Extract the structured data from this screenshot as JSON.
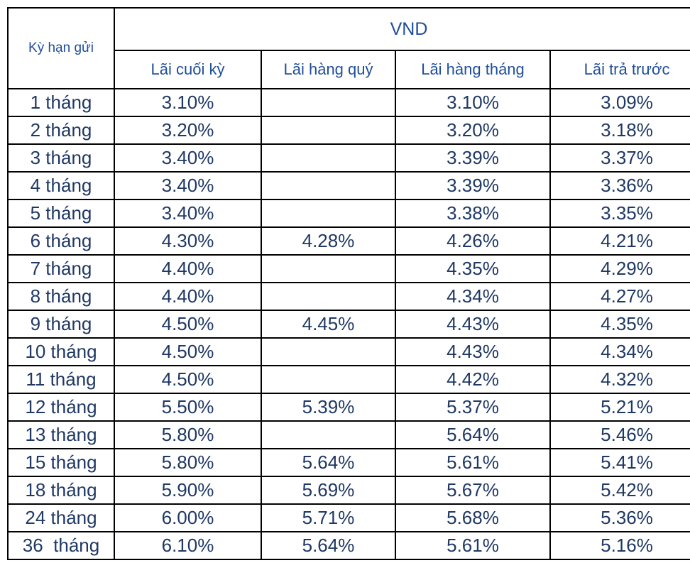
{
  "table": {
    "header": {
      "term": "Kỳ hạn gửi",
      "currency": "VND",
      "columns": [
        "Lãi cuối kỳ",
        "Lãi hàng quý",
        "Lãi hàng tháng",
        "Lãi trả trước"
      ]
    },
    "rows": [
      [
        "1 tháng",
        "3.10%",
        null,
        "3.10%",
        "3.09%"
      ],
      [
        "2 tháng",
        "3.20%",
        null,
        "3.20%",
        "3.18%"
      ],
      [
        "3 tháng",
        "3.40%",
        null,
        "3.39%",
        "3.37%"
      ],
      [
        "4 tháng",
        "3.40%",
        null,
        "3.39%",
        "3.36%"
      ],
      [
        "5 tháng",
        "3.40%",
        null,
        "3.38%",
        "3.35%"
      ],
      [
        "6 tháng",
        "4.30%",
        "4.28%",
        "4.26%",
        "4.21%"
      ],
      [
        "7 tháng",
        "4.40%",
        null,
        "4.35%",
        "4.29%"
      ],
      [
        "8 tháng",
        "4.40%",
        null,
        "4.34%",
        "4.27%"
      ],
      [
        "9 tháng",
        "4.50%",
        "4.45%",
        "4.43%",
        "4.35%"
      ],
      [
        "10 tháng",
        "4.50%",
        null,
        "4.43%",
        "4.34%"
      ],
      [
        "11 tháng",
        "4.50%",
        null,
        "4.42%",
        "4.32%"
      ],
      [
        "12 tháng",
        "5.50%",
        "5.39%",
        "5.37%",
        "5.21%"
      ],
      [
        "13 tháng",
        "5.80%",
        null,
        "5.64%",
        "5.46%"
      ],
      [
        "15 tháng",
        "5.80%",
        "5.64%",
        "5.61%",
        "5.41%"
      ],
      [
        "18 tháng",
        "5.90%",
        "5.69%",
        "5.67%",
        "5.42%"
      ],
      [
        "24 tháng",
        "6.00%",
        "5.71%",
        "5.68%",
        "5.36%"
      ],
      [
        "36  tháng",
        "6.10%",
        "5.64%",
        "5.61%",
        "5.16%"
      ]
    ]
  }
}
